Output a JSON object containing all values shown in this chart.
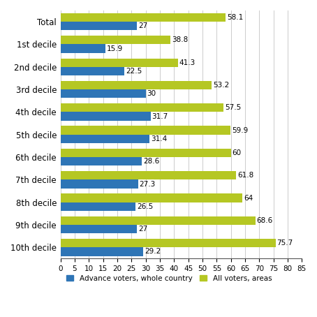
{
  "categories": [
    "Total",
    "1st decile",
    "2nd decile",
    "3rd decile",
    "4th decile",
    "5th decile",
    "6th decile",
    "7th decile",
    "8th decile",
    "9th decile",
    "10th decile"
  ],
  "advance_voters": [
    27,
    15.9,
    22.5,
    30,
    31.7,
    31.4,
    28.6,
    27.3,
    26.5,
    27,
    29.2
  ],
  "all_voters": [
    58.1,
    38.8,
    41.3,
    53.2,
    57.5,
    59.9,
    60,
    61.8,
    64,
    68.6,
    75.7
  ],
  "advance_color": "#2E75B6",
  "all_voters_color": "#B5C723",
  "xlim": [
    0,
    85
  ],
  "xticks": [
    0,
    5,
    10,
    15,
    20,
    25,
    30,
    35,
    40,
    45,
    50,
    55,
    60,
    65,
    70,
    75,
    80,
    85
  ],
  "legend_labels": [
    "Advance voters, whole country",
    "All voters, areas"
  ],
  "bar_height": 0.38,
  "background_color": "#ffffff",
  "grid_color": "#cccccc"
}
